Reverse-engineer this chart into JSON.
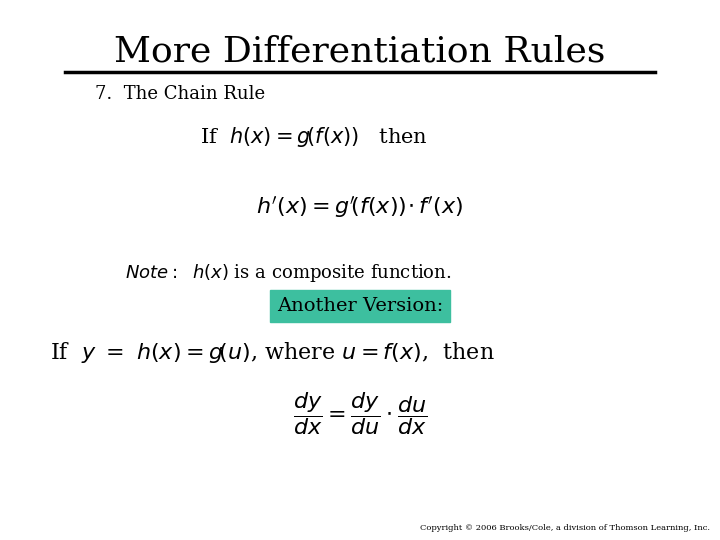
{
  "title": "More Differentiation Rules",
  "subtitle": "7.  The Chain Rule",
  "background_color": "#ffffff",
  "title_color": "#000000",
  "teal_color": "#3dbf9f",
  "copyright": "Copyright © 2006 Brooks/Cole, a division of Thomson Learning, Inc.",
  "another_version": "Another Version:",
  "figsize": [
    7.2,
    5.4
  ],
  "dpi": 100
}
